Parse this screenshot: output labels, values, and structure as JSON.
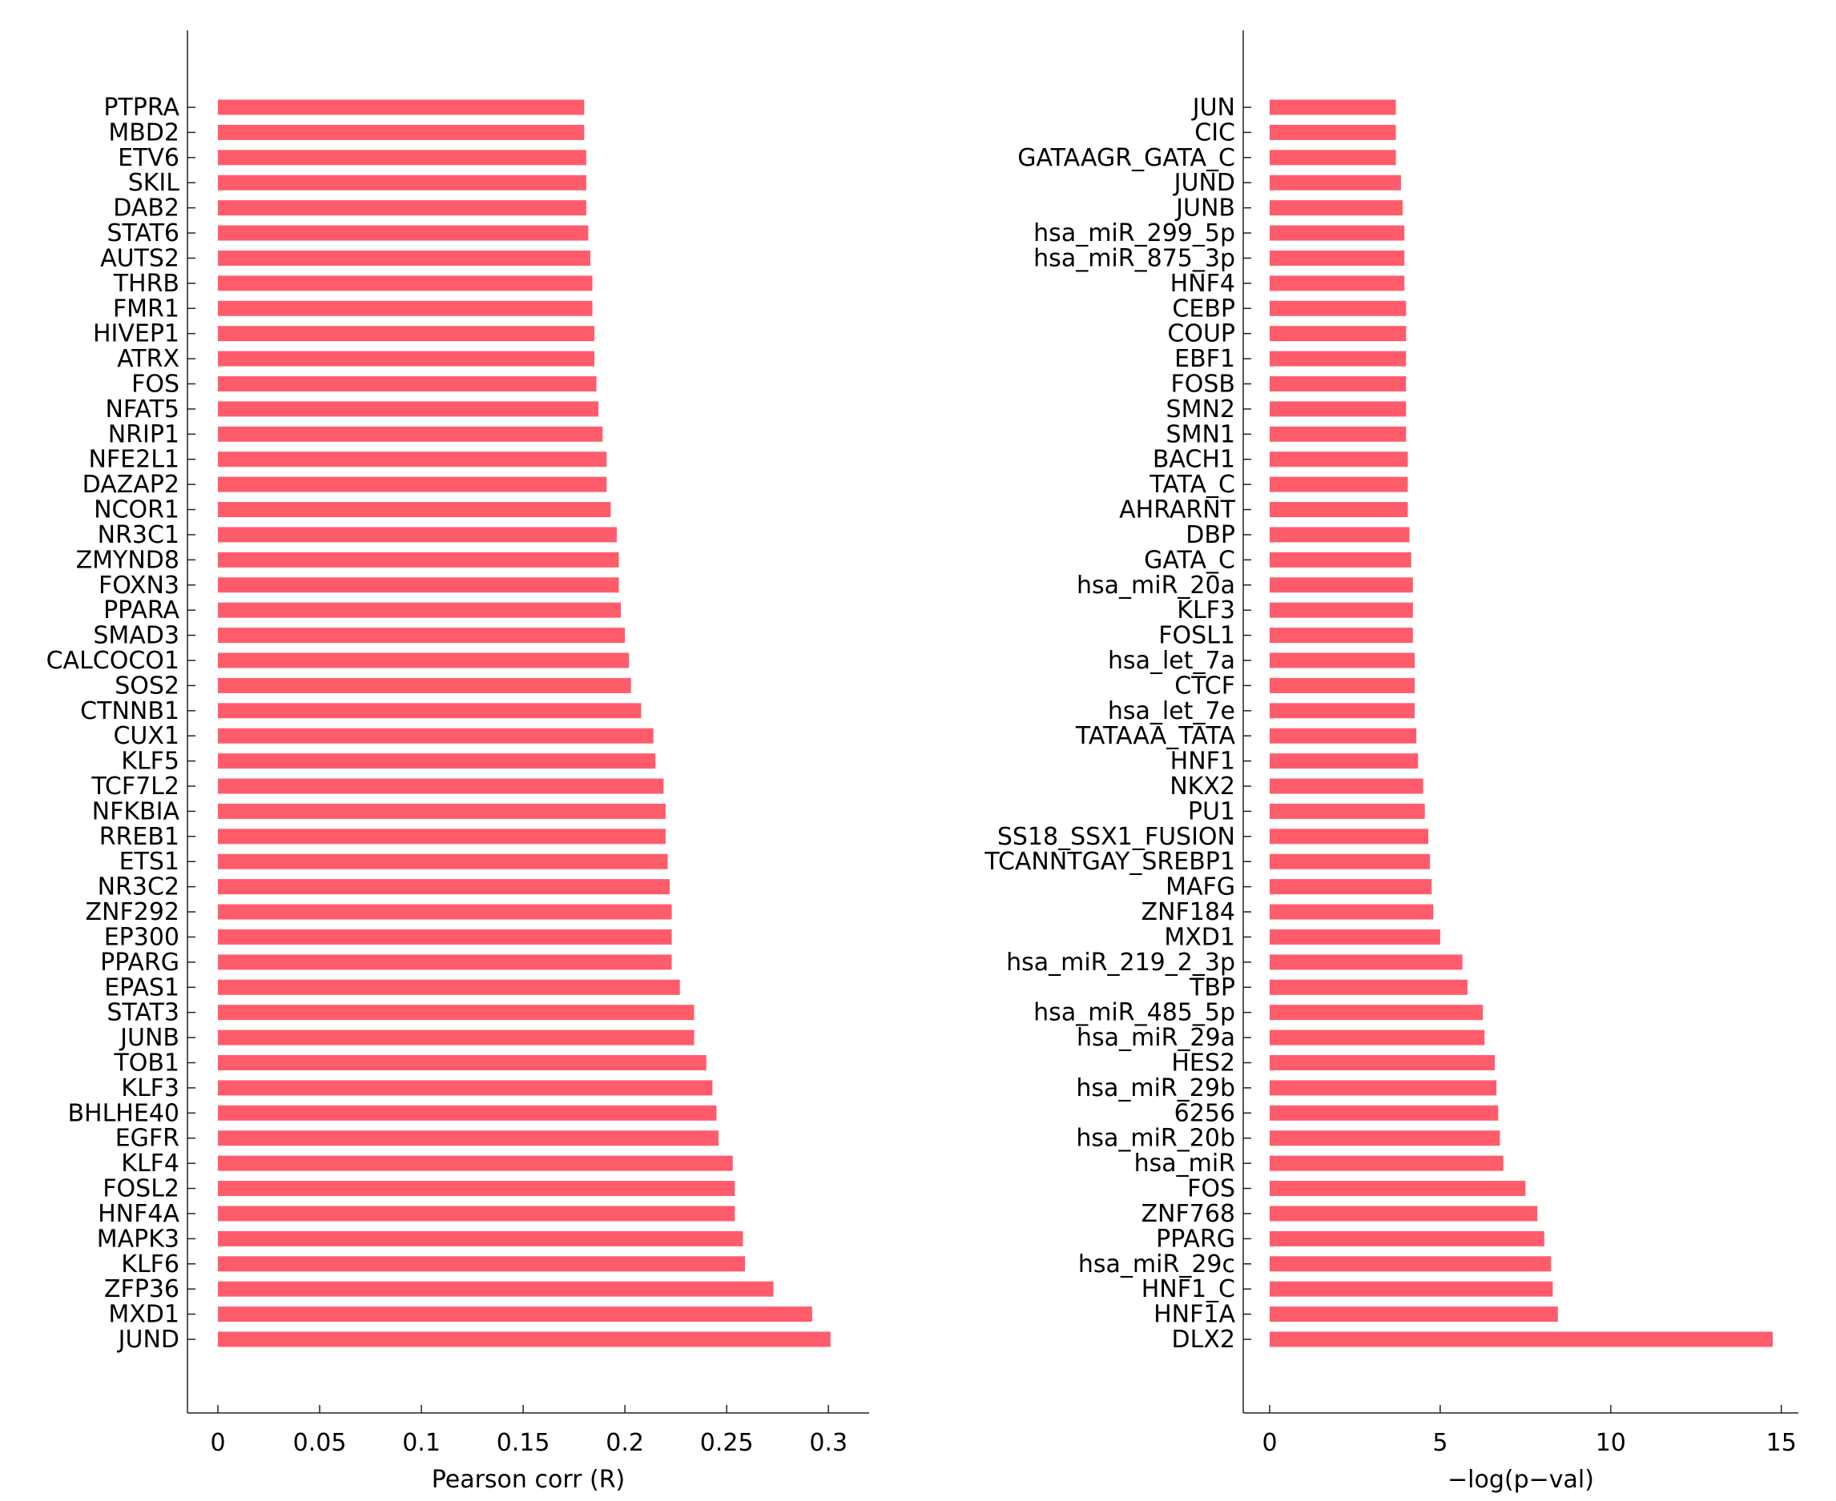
{
  "chart_data": [
    {
      "type": "bar",
      "orientation": "horizontal",
      "xlabel": "Pearson corr (R)",
      "xlim": [
        0,
        0.32
      ],
      "xticks": [
        0,
        0.05,
        0.1,
        0.15,
        0.2,
        0.25,
        0.3
      ],
      "xtick_labels": [
        "0",
        "0.05",
        "0.1",
        "0.15",
        "0.2",
        "0.25",
        "0.3"
      ],
      "bar_color": "#ff5c6b",
      "categories": [
        "PTPRA",
        "MBD2",
        "ETV6",
        "SKIL",
        "DAB2",
        "STAT6",
        "AUTS2",
        "THRB",
        "FMR1",
        "HIVEP1",
        "ATRX",
        "FOS",
        "NFAT5",
        "NRIP1",
        "NFE2L1",
        "DAZAP2",
        "NCOR1",
        "NR3C1",
        "ZMYND8",
        "FOXN3",
        "PPARA",
        "SMAD3",
        "CALCOCO1",
        "SOS2",
        "CTNNB1",
        "CUX1",
        "KLF5",
        "TCF7L2",
        "NFKBIA",
        "RREB1",
        "ETS1",
        "NR3C2",
        "ZNF292",
        "EP300",
        "PPARG",
        "EPAS1",
        "STAT3",
        "JUNB",
        "TOB1",
        "KLF3",
        "BHLHE40",
        "EGFR",
        "KLF4",
        "FOSL2",
        "HNF4A",
        "MAPK3",
        "KLF6",
        "ZFP36",
        "MXD1",
        "JUND"
      ],
      "values": [
        0.18,
        0.18,
        0.181,
        0.181,
        0.181,
        0.182,
        0.183,
        0.184,
        0.184,
        0.185,
        0.185,
        0.186,
        0.187,
        0.189,
        0.191,
        0.191,
        0.193,
        0.196,
        0.197,
        0.197,
        0.198,
        0.2,
        0.202,
        0.203,
        0.208,
        0.214,
        0.215,
        0.219,
        0.22,
        0.22,
        0.221,
        0.222,
        0.223,
        0.223,
        0.223,
        0.227,
        0.234,
        0.234,
        0.24,
        0.243,
        0.245,
        0.246,
        0.253,
        0.254,
        0.254,
        0.258,
        0.259,
        0.273,
        0.292,
        0.301
      ]
    },
    {
      "type": "bar",
      "orientation": "horizontal",
      "xlabel": "−log(p−val)",
      "xlim": [
        0,
        15.5
      ],
      "xticks": [
        0,
        5,
        10,
        15
      ],
      "xtick_labels": [
        "0",
        "5",
        "10",
        "15"
      ],
      "bar_color": "#ff5c6b",
      "categories": [
        "JUN",
        "CIC",
        "GATAAGR_GATA_C",
        "JUND",
        "JUNB",
        "hsa_miR_299_5p",
        "hsa_miR_875_3p",
        "HNF4",
        "CEBP",
        "COUP",
        "EBF1",
        "FOSB",
        "SMN2",
        "SMN1",
        "BACH1",
        "TATA_C",
        "AHRARNT",
        "DBP",
        "GATA_C",
        "hsa_miR_20a",
        "KLF3",
        "FOSL1",
        "hsa_let_7a",
        "CTCF",
        "hsa_let_7e",
        "TATAAA_TATA",
        "HNF1",
        "NKX2",
        "PU1",
        "SS18_SSX1_FUSION",
        "TCANNTGAY_SREBP1",
        "MAFG",
        "ZNF184",
        "MXD1",
        "hsa_miR_219_2_3p",
        "TBP",
        "hsa_miR_485_5p",
        "hsa_miR_29a",
        "HES2",
        "hsa_miR_29b",
        "6256",
        "hsa_miR_20b",
        "hsa_miR",
        "FOS",
        "ZNF768",
        "PPARG",
        "hsa_miR_29c",
        "HNF1_C",
        "HNF1A",
        "DLX2"
      ],
      "values": [
        3.7,
        3.7,
        3.7,
        3.85,
        3.9,
        3.95,
        3.95,
        3.95,
        4.0,
        4.0,
        4.0,
        4.0,
        4.0,
        4.0,
        4.05,
        4.05,
        4.05,
        4.1,
        4.15,
        4.2,
        4.2,
        4.2,
        4.25,
        4.25,
        4.25,
        4.3,
        4.35,
        4.5,
        4.55,
        4.65,
        4.7,
        4.75,
        4.8,
        5.0,
        5.65,
        5.8,
        6.25,
        6.3,
        6.6,
        6.65,
        6.7,
        6.75,
        6.85,
        7.5,
        7.85,
        8.05,
        8.25,
        8.3,
        8.45,
        14.75
      ]
    }
  ]
}
